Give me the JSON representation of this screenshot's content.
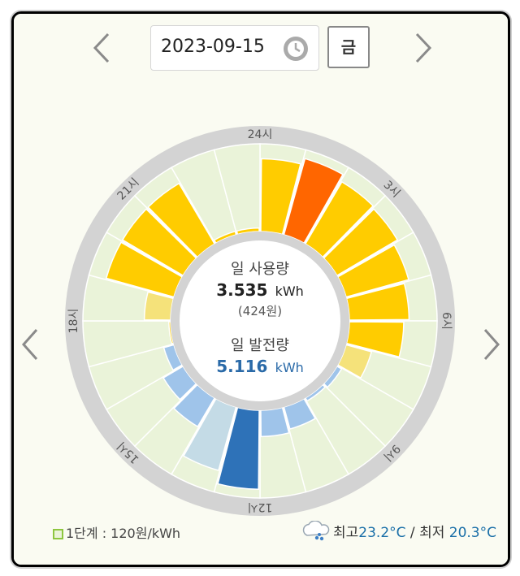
{
  "date": {
    "value": "2023-09-15",
    "day_label": "금"
  },
  "icons": {
    "prev": "chevron-left-icon",
    "next": "chevron-right-icon",
    "clock": "clock-icon",
    "weather": "cloud-rain-icon"
  },
  "dial": {
    "hour_labels": [
      {
        "label": "24시",
        "hour": 0
      },
      {
        "label": "3시",
        "hour": 3
      },
      {
        "label": "6시",
        "hour": 6
      },
      {
        "label": "9시",
        "hour": 9
      },
      {
        "label": "12시",
        "hour": 12
      },
      {
        "label": "15시",
        "hour": 15
      },
      {
        "label": "18시",
        "hour": 18
      },
      {
        "label": "21시",
        "hour": 21
      }
    ],
    "usage_title": "일 사용량",
    "usage_value": "3.535",
    "usage_unit": "kWh",
    "usage_cost": "(424원)",
    "gen_title": "일 발전량",
    "gen_value": "5.116",
    "gen_unit": "kWh"
  },
  "chart_data": {
    "type": "radial-bar",
    "hours": [
      0,
      1,
      2,
      3,
      4,
      5,
      6,
      7,
      8,
      9,
      10,
      11,
      12,
      13,
      14,
      15,
      16,
      17,
      18,
      19,
      20,
      21,
      22,
      23
    ],
    "usage_level": [
      0.83,
      0.9,
      0.82,
      0.8,
      0.74,
      0.68,
      0.62,
      0.3,
      0.1,
      0.02,
      0.02,
      0.04,
      0.04,
      0.04,
      0.04,
      0.04,
      0.02,
      0.02,
      0.3,
      0.8,
      0.8,
      0.8,
      0.04,
      0.04
    ],
    "usage_colors": [
      "#ffcc00",
      "#ff6600",
      "#ffcc00",
      "#ffcc00",
      "#ffcc00",
      "#ffcc00",
      "#ffcc00",
      "#f5e27a",
      "#e8d55a",
      "#ffcc00",
      "#ffcc00",
      "#ffcc00",
      "#ffcc00",
      "#ffcc00",
      "#ffcc00",
      "#ffcc00",
      "#ffcc00",
      "#ffcc00",
      "#f5e27a",
      "#ffcc00",
      "#ffcc00",
      "#ffcc00",
      "#ffcc00",
      "#ffcc00"
    ],
    "generation_level": [
      0,
      0,
      0,
      0,
      0,
      0,
      0,
      0,
      0.06,
      0.04,
      0.26,
      0.3,
      0.9,
      0.75,
      0.38,
      0.26,
      0.12,
      0,
      0,
      0,
      0,
      0,
      0,
      0
    ],
    "generation_colors": [
      "#2e72b8",
      "#2e72b8",
      "#2e72b8",
      "#2e72b8",
      "#2e72b8",
      "#2e72b8",
      "#2e72b8",
      "#2e72b8",
      "#9fc4ea",
      "#9fc4ea",
      "#9fc4ea",
      "#9fc4ea",
      "#2e72b8",
      "#c4dbe6",
      "#9fc4ea",
      "#9fc4ea",
      "#9fc4ea",
      "#2e72b8",
      "#2e72b8",
      "#2e72b8",
      "#2e72b8",
      "#2e72b8",
      "#2e72b8",
      "#2e72b8"
    ],
    "sector_fill": "#eaf3d9",
    "ring_color": "#d3d3d3"
  },
  "legend": {
    "label": "1단계 : 120원/kWh"
  },
  "weather": {
    "high_label": "최고",
    "high_value": "23.2°C",
    "separator": " / ",
    "low_label": "최저",
    "low_value": "20.3°C"
  }
}
